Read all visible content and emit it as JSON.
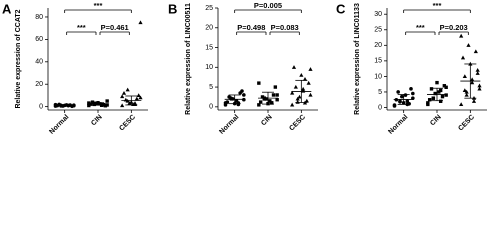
{
  "chart_data": [
    {
      "type": "scatter",
      "panel": "A",
      "ylabel": "Relative expression of CCAT2",
      "categories": [
        "Normal",
        "CIN",
        "CESC"
      ],
      "values": [
        [
          0.5,
          1,
          1.2,
          0.8,
          1.5,
          2,
          0.3,
          1.1,
          0.9,
          1.4,
          0.6,
          1.8,
          1,
          0.7,
          1.3
        ],
        [
          1,
          2,
          3,
          1.5,
          2.5,
          4,
          0.8,
          3.5,
          2.2,
          1.8,
          2.8,
          3.2,
          1.2,
          2,
          5
        ],
        [
          1,
          3,
          5,
          8,
          2,
          6,
          10,
          4,
          12,
          7,
          3,
          9,
          2,
          15,
          75
        ]
      ],
      "mean": [
        1.1,
        2.4,
        5.5
      ],
      "sd": [
        0.4,
        1.1,
        4
      ],
      "ylim": [
        -3,
        88
      ],
      "yticks": [
        0,
        20,
        40,
        60,
        80
      ],
      "annotations": [
        {
          "text": "***",
          "between": [
            "Normal",
            "CESC"
          ]
        },
        {
          "text": "***",
          "between": [
            "Normal",
            "CIN"
          ]
        },
        {
          "text": "P=0.461",
          "between": [
            "CIN",
            "CESC"
          ]
        }
      ]
    },
    {
      "type": "scatter",
      "panel": "B",
      "ylabel": "Relative expression of LINC00511",
      "categories": [
        "Normal",
        "CIN",
        "CESC"
      ],
      "values": [
        [
          0.5,
          1,
          2,
          3,
          1.5,
          2.5,
          4,
          0.8,
          1.2,
          3.5,
          2,
          1,
          0.6,
          2.2,
          1.8
        ],
        [
          0.5,
          1,
          2,
          3,
          1.5,
          2.5,
          5,
          0.8,
          1.2,
          3,
          2,
          6,
          1,
          2.2,
          1.8
        ],
        [
          0.5,
          1,
          2,
          3,
          4,
          5,
          6,
          8,
          10,
          1.5,
          2.5,
          3.5,
          7,
          1.2,
          9.5,
          4.5
        ]
      ],
      "mean": [
        1.9,
        2.2,
        3.9
      ],
      "sd": [
        1.1,
        1.5,
        2.8
      ],
      "ylim": [
        -0.8,
        25
      ],
      "yticks": [
        0,
        5,
        10,
        15,
        20,
        25
      ],
      "annotations": [
        {
          "text": "P=0.005",
          "between": [
            "Normal",
            "CESC"
          ]
        },
        {
          "text": "P=0.498",
          "between": [
            "Normal",
            "CIN"
          ]
        },
        {
          "text": "P=0.083",
          "between": [
            "CIN",
            "CESC"
          ]
        }
      ]
    },
    {
      "type": "scatter",
      "panel": "C",
      "ylabel": "Relative expression of LINC01133",
      "categories": [
        "Normal",
        "CIN",
        "CESC"
      ],
      "values": [
        [
          0.5,
          1,
          2,
          3,
          4,
          5,
          6,
          1.5,
          2.5,
          1.2,
          3.5,
          0.8,
          2,
          1.8,
          4.5
        ],
        [
          1,
          2,
          3,
          4,
          5,
          6,
          7,
          8,
          2.5,
          3.5,
          4.5,
          1.5,
          5.5,
          3,
          6.5
        ],
        [
          1,
          2,
          4,
          6,
          8,
          10,
          12,
          14,
          16,
          18,
          20,
          23,
          3,
          5,
          7,
          9,
          5.5,
          11
        ]
      ],
      "mean": [
        2.6,
        4.2,
        8.5
      ],
      "sd": [
        1.6,
        2,
        5.5
      ],
      "ylim": [
        -0.8,
        32
      ],
      "yticks": [
        0,
        5,
        10,
        15,
        20,
        25,
        30
      ],
      "annotations": [
        {
          "text": "***",
          "between": [
            "Normal",
            "CESC"
          ]
        },
        {
          "text": "***",
          "between": [
            "Normal",
            "CIN"
          ]
        },
        {
          "text": "P=0.203",
          "between": [
            "CIN",
            "CESC"
          ]
        }
      ]
    }
  ]
}
